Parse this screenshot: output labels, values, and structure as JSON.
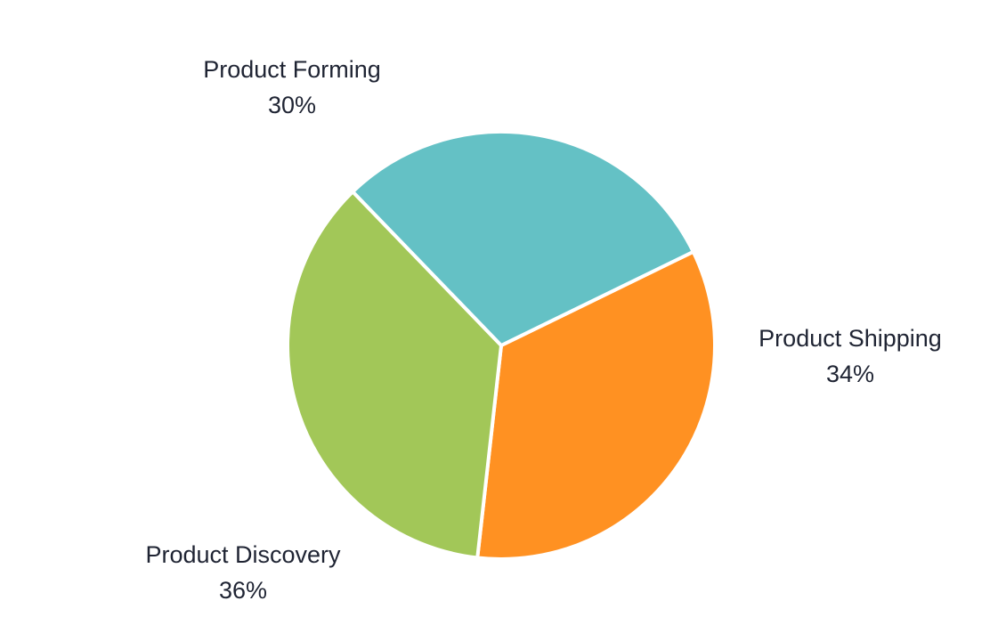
{
  "chart_data": {
    "type": "pie",
    "start_angle_deg": 64,
    "slices": [
      {
        "label": "Product Shipping",
        "value": 34,
        "display": "34%",
        "color": "#FF9122"
      },
      {
        "label": "Product Discovery",
        "value": 36,
        "display": "36%",
        "color": "#A2C758"
      },
      {
        "label": "Product Forming",
        "value": 30,
        "display": "30%",
        "color": "#64C1C5"
      }
    ]
  }
}
